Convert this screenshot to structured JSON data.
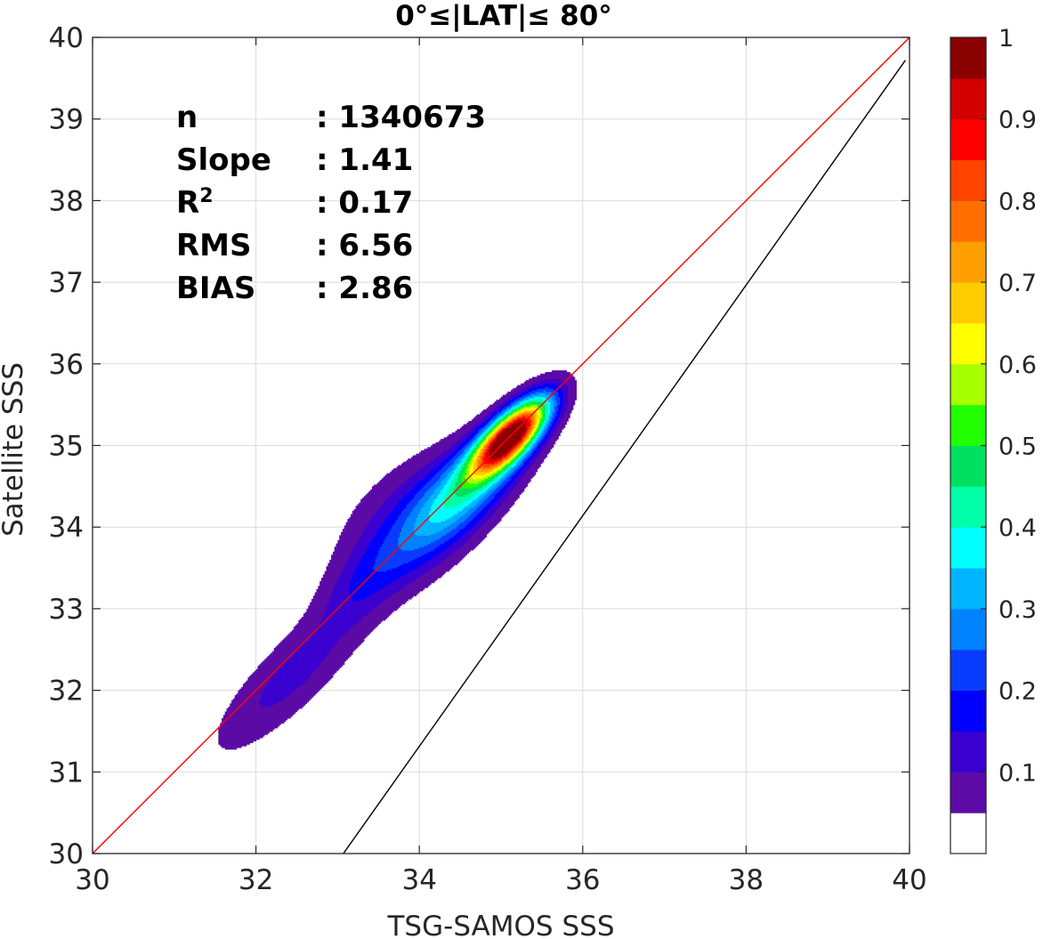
{
  "chart_data": {
    "type": "contour",
    "title": "0°≤|LAT|≤ 80°",
    "xlabel": "TSG-SAMOS SSS",
    "ylabel": "Satellite SSS",
    "xlim": [
      30,
      40
    ],
    "ylim": [
      30,
      40
    ],
    "xticks": [
      "30",
      "32",
      "34",
      "36",
      "38",
      "40"
    ],
    "yticks": [
      "30",
      "31",
      "32",
      "33",
      "34",
      "35",
      "36",
      "37",
      "38",
      "39",
      "40"
    ],
    "grid": true,
    "stats": [
      {
        "label": "n",
        "value": ": 1340673"
      },
      {
        "label": "Slope",
        "value": ": 1.41"
      },
      {
        "label": "R",
        "sup": "2",
        "value": ": 0.17"
      },
      {
        "label": "RMS",
        "value": ": 6.56"
      },
      {
        "label": "BIAS",
        "value": ": 2.86"
      }
    ],
    "reference_lines": [
      {
        "name": "one-to-one",
        "color": "#ff0000",
        "points": [
          [
            30,
            30
          ],
          [
            40,
            40
          ]
        ]
      },
      {
        "name": "regression",
        "color": "#000000",
        "points": [
          [
            33.07,
            30
          ],
          [
            39.95,
            39.72
          ]
        ]
      }
    ],
    "density_centers": [
      {
        "x": 35.12,
        "y": 35.12,
        "level": 1.0
      },
      {
        "x": 34.9,
        "y": 34.95,
        "level": 0.7
      },
      {
        "x": 34.5,
        "y": 34.55,
        "level": 0.35
      },
      {
        "x": 32.5,
        "y": 32.4,
        "level": 0.1
      }
    ],
    "colorbar": {
      "ticks": [
        "0.1",
        "0.2",
        "0.3",
        "0.4",
        "0.5",
        "0.6",
        "0.7",
        "0.8",
        "0.9",
        "1"
      ],
      "range": [
        0,
        1
      ],
      "levels": [
        {
          "from": 0.0,
          "to": 0.05,
          "color": "#ffffff"
        },
        {
          "from": 0.05,
          "to": 0.1,
          "color": "#5c0ba6"
        },
        {
          "from": 0.1,
          "to": 0.15,
          "color": "#3a00cf"
        },
        {
          "from": 0.15,
          "to": 0.2,
          "color": "#0000ff"
        },
        {
          "from": 0.2,
          "to": 0.25,
          "color": "#0a3cff"
        },
        {
          "from": 0.25,
          "to": 0.3,
          "color": "#0082ff"
        },
        {
          "from": 0.3,
          "to": 0.35,
          "color": "#00b4ff"
        },
        {
          "from": 0.35,
          "to": 0.4,
          "color": "#00ffff"
        },
        {
          "from": 0.4,
          "to": 0.45,
          "color": "#00ffa8"
        },
        {
          "from": 0.45,
          "to": 0.5,
          "color": "#00e060"
        },
        {
          "from": 0.5,
          "to": 0.55,
          "color": "#22ff00"
        },
        {
          "from": 0.55,
          "to": 0.6,
          "color": "#a8ff00"
        },
        {
          "from": 0.6,
          "to": 0.65,
          "color": "#ffff00"
        },
        {
          "from": 0.65,
          "to": 0.7,
          "color": "#ffcc00"
        },
        {
          "from": 0.7,
          "to": 0.75,
          "color": "#ffa000"
        },
        {
          "from": 0.75,
          "to": 0.8,
          "color": "#ff7000"
        },
        {
          "from": 0.8,
          "to": 0.85,
          "color": "#ff4400"
        },
        {
          "from": 0.85,
          "to": 0.9,
          "color": "#ff0000"
        },
        {
          "from": 0.9,
          "to": 0.95,
          "color": "#d20000"
        },
        {
          "from": 0.95,
          "to": 1.0,
          "color": "#8b0000"
        }
      ]
    }
  }
}
